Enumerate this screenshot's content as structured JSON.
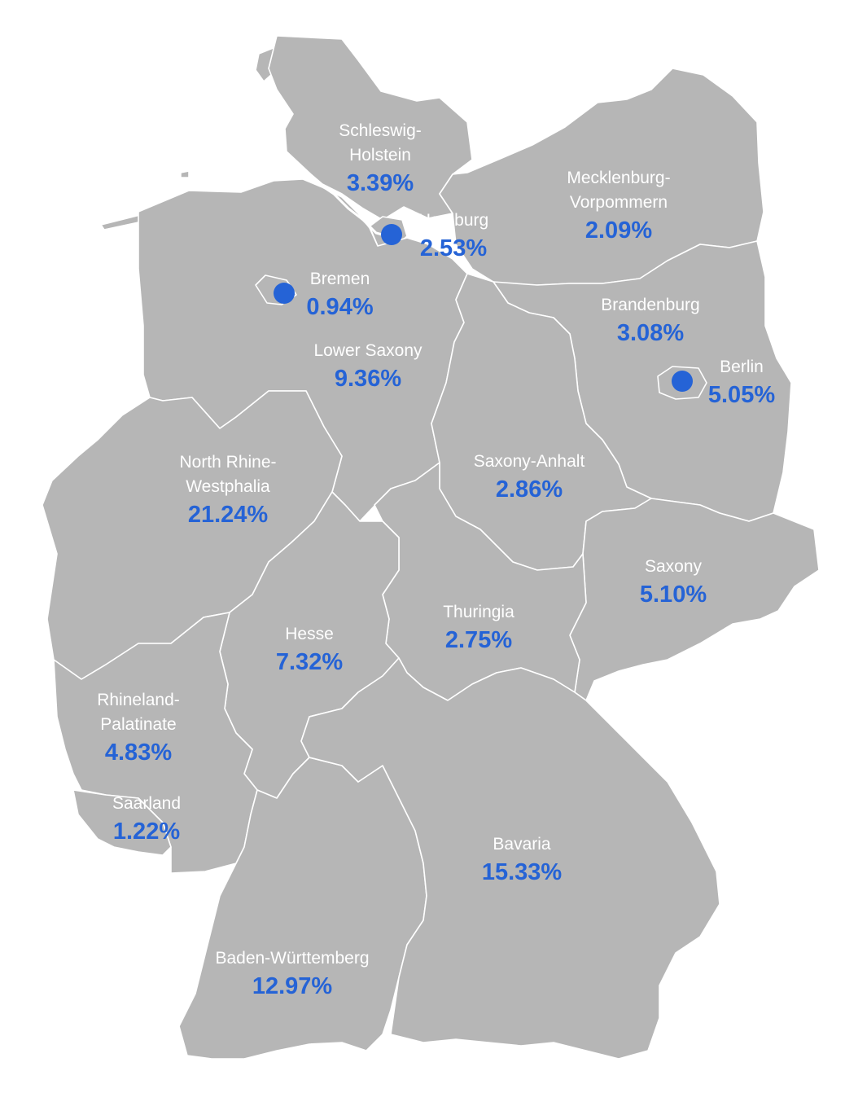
{
  "map": {
    "colors": {
      "land": "#b6b6b6",
      "borders": "#ffffff",
      "state_name": "#ffffff",
      "percentage": "#2563d6",
      "city_marker": "#2563d6"
    },
    "states": [
      {
        "name_lines": [
          "Schleswig-",
          "Holstein"
        ],
        "value": "3.39%"
      },
      {
        "name_lines": [
          "Hamburg"
        ],
        "value": "2.53%"
      },
      {
        "name_lines": [
          "Mecklenburg-",
          "Vorpommern"
        ],
        "value": "2.09%"
      },
      {
        "name_lines": [
          "Bremen"
        ],
        "value": "0.94%"
      },
      {
        "name_lines": [
          "Lower Saxony"
        ],
        "value": "9.36%"
      },
      {
        "name_lines": [
          "Brandenburg"
        ],
        "value": "3.08%"
      },
      {
        "name_lines": [
          "Berlin"
        ],
        "value": "5.05%"
      },
      {
        "name_lines": [
          "North Rhine-",
          "Westphalia"
        ],
        "value": "21.24%"
      },
      {
        "name_lines": [
          "Saxony-Anhalt"
        ],
        "value": "2.86%"
      },
      {
        "name_lines": [
          "Saxony"
        ],
        "value": "5.10%"
      },
      {
        "name_lines": [
          "Thuringia"
        ],
        "value": "2.75%"
      },
      {
        "name_lines": [
          "Hesse"
        ],
        "value": "7.32%"
      },
      {
        "name_lines": [
          "Rhineland-",
          "Palatinate"
        ],
        "value": "4.83%"
      },
      {
        "name_lines": [
          "Saarland"
        ],
        "value": "1.22%"
      },
      {
        "name_lines": [
          "Bavaria"
        ],
        "value": "15.33%"
      },
      {
        "name_lines": [
          "Baden-Württemberg"
        ],
        "value": "12.97%"
      }
    ]
  }
}
